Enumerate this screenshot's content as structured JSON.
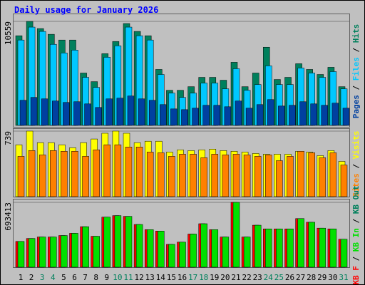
{
  "chart_data": [
    {
      "type": "bar",
      "title": "Daily usage for January 2026",
      "ylim": [
        0,
        10559
      ],
      "yticks": [
        10559
      ],
      "legend_separator": " / ",
      "legend_reversed": true,
      "series": [
        {
          "name": "Hits",
          "color": "#00805c",
          "values": [
            9103,
            10559,
            9831,
            9248,
            8666,
            8666,
            5316,
            4442,
            7282,
            8520,
            10341,
            9540,
            9103,
            5680,
            3568,
            3568,
            3932,
            4879,
            4879,
            4588,
            6408,
            3932,
            5316,
            7938,
            4661,
            4879,
            6263,
            5680,
            5170,
            5899,
            3932
          ]
        },
        {
          "name": "Files",
          "color": "#00c8ff",
          "values": [
            8666,
            9976,
            9540,
            8229,
            7355,
            7646,
            4879,
            3859,
            6918,
            8083,
            9976,
            9103,
            8666,
            5170,
            3277,
            2840,
            3277,
            4296,
            4296,
            3714,
            5753,
            3568,
            4151,
            6044,
            4151,
            4151,
            5826,
            5316,
            4879,
            5462,
            3714
          ]
        },
        {
          "name": "Pages",
          "color": "#0040a0",
          "values": [
            2549,
            2840,
            2694,
            2476,
            2331,
            2403,
            2185,
            1820,
            2694,
            2767,
            2985,
            2694,
            2549,
            2112,
            1675,
            1602,
            1748,
            2039,
            2039,
            1893,
            2476,
            1748,
            2112,
            2621,
            1966,
            2039,
            2403,
            2185,
            2039,
            2258,
            1748
          ]
        }
      ]
    },
    {
      "type": "bar",
      "ylim": [
        0,
        739
      ],
      "yticks": [
        739
      ],
      "legend_separator": " / ",
      "legend_reversed": true,
      "series": [
        {
          "name": "Visits",
          "color": "#ffff00",
          "values": [
            585,
            739,
            609,
            609,
            585,
            552,
            609,
            650,
            715,
            739,
            715,
            609,
            625,
            625,
            503,
            528,
            520,
            528,
            536,
            520,
            512,
            503,
            487,
            479,
            479,
            479,
            512,
            503,
            463,
            520,
            398
          ]
        },
        {
          "name": "Sites",
          "color": "#ff8000",
          "values": [
            455,
            520,
            471,
            520,
            512,
            512,
            455,
            528,
            585,
            585,
            560,
            560,
            503,
            495,
            455,
            479,
            479,
            439,
            479,
            471,
            479,
            471,
            455,
            471,
            406,
            455,
            512,
            495,
            439,
            495,
            357
          ]
        }
      ]
    },
    {
      "type": "bar",
      "ylim": [
        0,
        693413
      ],
      "yticks": [
        693413
      ],
      "legend_separator": " / ",
      "legend_reversed": false,
      "categories": [
        "1",
        "2",
        "3",
        "4",
        "5",
        "6",
        "7",
        "8",
        "9",
        "10",
        "11",
        "12",
        "13",
        "14",
        "15",
        "16",
        "17",
        "18",
        "19",
        "20",
        "21",
        "22",
        "23",
        "24",
        "25",
        "26",
        "27",
        "28",
        "29",
        "30",
        "31"
      ],
      "category_colors": [
        "#000000",
        "#000000",
        "#00805c",
        "#00805c",
        "#000000",
        "#000000",
        "#000000",
        "#000000",
        "#000000",
        "#00805c",
        "#00805c",
        "#000000",
        "#000000",
        "#000000",
        "#000000",
        "#000000",
        "#00805c",
        "#00805c",
        "#000000",
        "#000000",
        "#000000",
        "#000000",
        "#000000",
        "#00805c",
        "#00805c",
        "#000000",
        "#000000",
        "#000000",
        "#000000",
        "#000000",
        "#00805c"
      ],
      "series": [
        {
          "name": "KB F",
          "color": "#ff0000",
          "values": [
            275790,
            307308,
            323068,
            323068,
            338827,
            362466,
            433384,
            330947,
            535820,
            551579,
            543699,
            457023,
            401865,
            386105,
            244271,
            267910,
            354587,
            464902,
            401865,
            323068,
            693413,
            323068,
            449143,
            409744,
            409744,
            409744,
            520060,
            480662,
            417624,
            409744,
            299429
          ]
        },
        {
          "name": "KB In",
          "color": "#00e000",
          "values": [
            275790,
            307308,
            323068,
            323068,
            338827,
            362466,
            433384,
            330947,
            535820,
            551579,
            543699,
            457023,
            401865,
            386105,
            244271,
            267910,
            354587,
            464902,
            401865,
            323068,
            693413,
            323068,
            449143,
            409744,
            409744,
            409744,
            520060,
            480662,
            417624,
            409744,
            299429
          ]
        },
        {
          "name": "KB Out",
          "color": "#00805c",
          "values": [
            null,
            null,
            null,
            null,
            null,
            null,
            null,
            null,
            null,
            null,
            null,
            null,
            null,
            null,
            null,
            null,
            null,
            null,
            null,
            null,
            null,
            null,
            null,
            null,
            null,
            null,
            null,
            null,
            null,
            null,
            null
          ]
        }
      ]
    }
  ]
}
